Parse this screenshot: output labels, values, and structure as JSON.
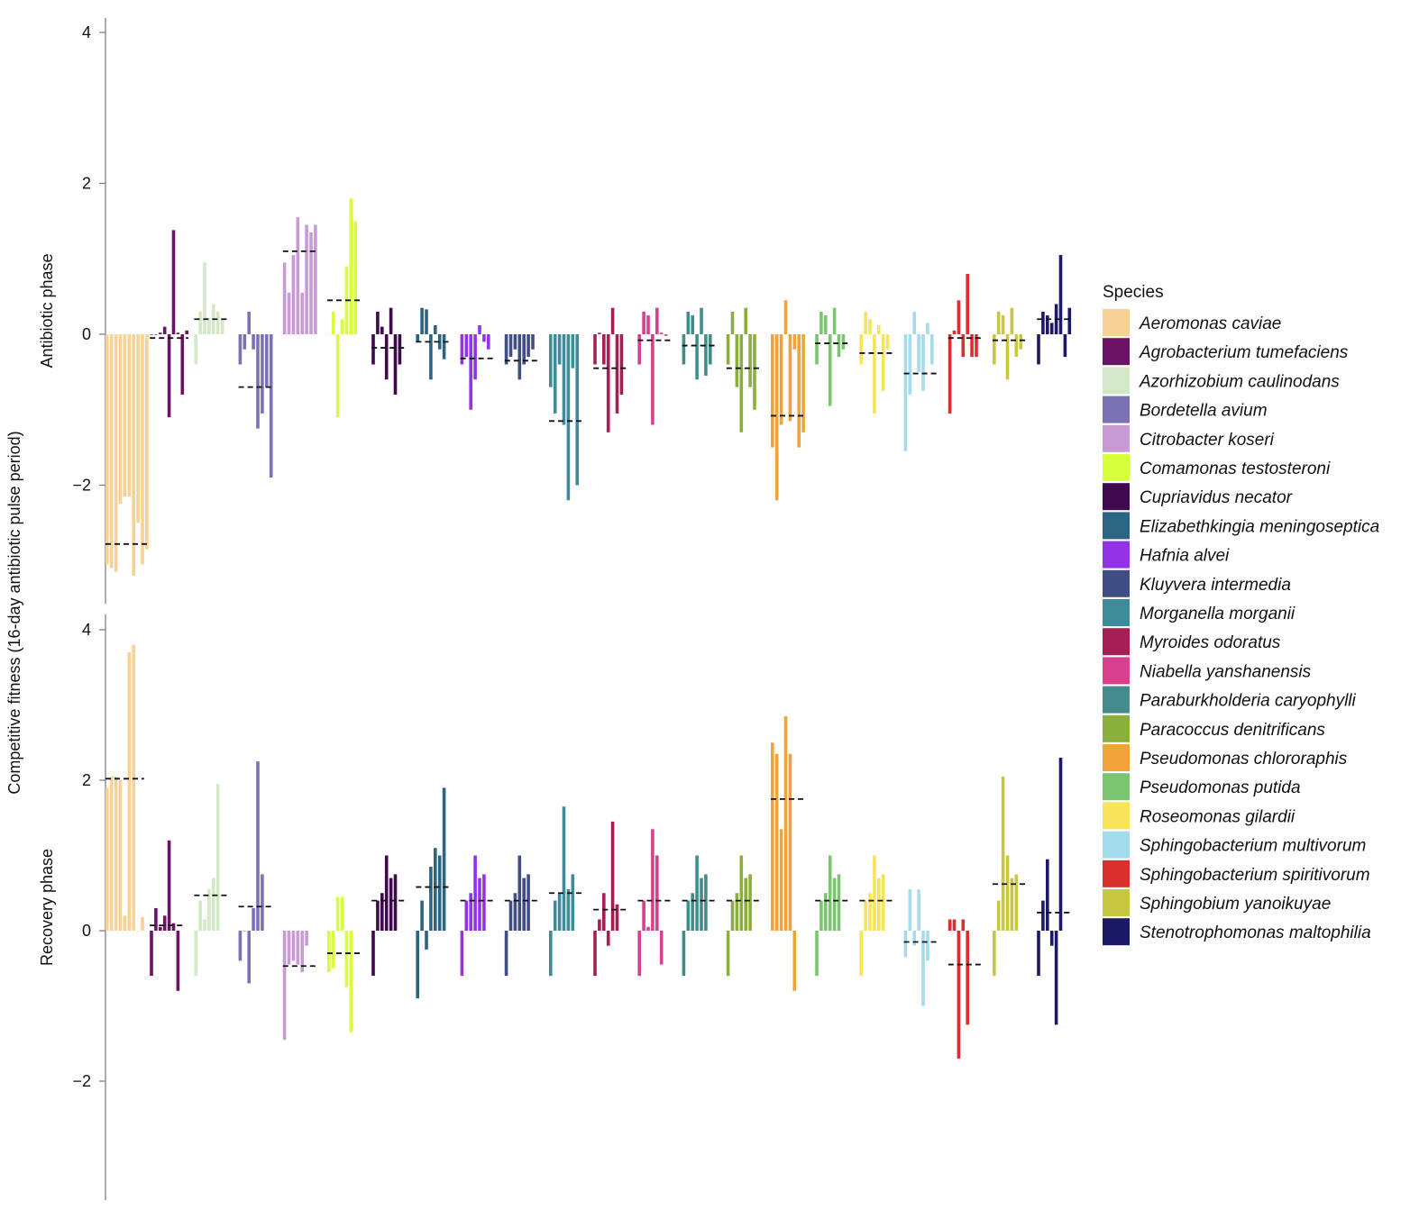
{
  "chart_data": {
    "type": "bar",
    "ylabel": "Competitive fitness (16-day antibiotic pulse period)",
    "legend_title": "Species",
    "legend_position": "right",
    "grid": false,
    "species": [
      {
        "name": "Aeromonas caviae",
        "color": "#F8D196"
      },
      {
        "name": "Agrobacterium tumefaciens",
        "color": "#6B1466"
      },
      {
        "name": "Azorhizobium caulinodans",
        "color": "#D3E8C7"
      },
      {
        "name": "Bordetella avium",
        "color": "#7A72B3"
      },
      {
        "name": "Citrobacter koseri",
        "color": "#C99BD5"
      },
      {
        "name": "Comamonas testosteroni",
        "color": "#D7FF3C"
      },
      {
        "name": "Cupriavidus necator",
        "color": "#3E0A4D"
      },
      {
        "name": "Elizabethkingia meningoseptica",
        "color": "#2B6582"
      },
      {
        "name": "Hafnia alvei",
        "color": "#9333E6"
      },
      {
        "name": "Kluyvera intermedia",
        "color": "#414E86"
      },
      {
        "name": "Morganella morganii",
        "color": "#3E8B99"
      },
      {
        "name": "Myroides odoratus",
        "color": "#A51F55"
      },
      {
        "name": "Niabella yanshanensis",
        "color": "#D83F8E"
      },
      {
        "name": "Paraburkholderia caryophylli",
        "color": "#448C8C"
      },
      {
        "name": "Paracoccus denitrificans",
        "color": "#8AAF3C"
      },
      {
        "name": "Pseudomonas chlororaphis",
        "color": "#EFA33A"
      },
      {
        "name": "Pseudomonas putida",
        "color": "#7BC470"
      },
      {
        "name": "Roseomonas gilardii",
        "color": "#F7E45A"
      },
      {
        "name": "Sphingobacterium multivorum",
        "color": "#A5DCEB"
      },
      {
        "name": "Sphingobacterium spiritivorum",
        "color": "#DA2F2F"
      },
      {
        "name": "Sphingobium yanoikuyae",
        "color": "#C8C840"
      },
      {
        "name": "Stenotrophomonas maltophilia",
        "color": "#1C1A66"
      }
    ],
    "panels": [
      {
        "name": "Antibiotic phase",
        "ylim": [
          -3.55,
          4.2
        ],
        "yticks": [
          -2,
          0,
          2,
          4
        ],
        "ytick_labels": [
          "−2",
          "0",
          "2",
          "4"
        ],
        "means": [
          -2.78,
          -0.05,
          0.2,
          -0.7,
          1.1,
          0.45,
          -0.18,
          -0.1,
          -0.32,
          -0.35,
          -1.15,
          -0.45,
          -0.08,
          -0.15,
          -0.45,
          -1.08,
          -0.12,
          -0.25,
          -0.52,
          -0.05,
          -0.08,
          0.2
        ],
        "values": [
          [
            -3.05,
            -3.1,
            -3.15,
            -2.25,
            -2.15,
            -2.15,
            -3.2,
            -2.5,
            -3.05,
            -2.85
          ],
          [
            0.0,
            0.0,
            0.02,
            0.1,
            -1.1,
            1.38,
            0.02,
            -0.8,
            0.05
          ],
          [
            -0.4,
            0.3,
            0.95,
            0.2,
            0.4,
            0.3,
            0.2
          ],
          [
            -0.4,
            -0.2,
            0.3,
            -0.2,
            -1.25,
            -1.05,
            -0.7,
            -1.9
          ],
          [
            0.95,
            0.55,
            1.05,
            1.55,
            0.55,
            1.45,
            1.35,
            1.45
          ],
          [
            0.0,
            0.3,
            -1.1,
            0.2,
            0.9,
            1.8,
            1.5
          ],
          [
            -0.4,
            0.3,
            0.1,
            -0.6,
            0.35,
            -0.8,
            -0.4
          ],
          [
            -0.1,
            0.35,
            0.33,
            -0.6,
            0.12,
            -0.2,
            -0.33
          ],
          [
            -0.4,
            -0.3,
            -1.0,
            -0.6,
            0.12,
            -0.1,
            -0.2
          ],
          [
            -0.4,
            -0.3,
            -0.2,
            -0.6,
            -0.4,
            -0.3,
            -0.2
          ],
          [
            -0.7,
            -1.05,
            -0.4,
            -1.2,
            -2.2,
            -0.45,
            -2.0
          ],
          [
            -0.4,
            0.02,
            -0.4,
            -1.3,
            0.35,
            -1.05,
            -0.8
          ],
          [
            -0.4,
            0.3,
            0.25,
            -1.2,
            0.35,
            0.02,
            -0.02
          ],
          [
            -0.4,
            0.3,
            0.25,
            -0.6,
            0.35,
            -0.55,
            -0.4
          ],
          [
            -0.4,
            0.3,
            -0.7,
            -1.3,
            0.35,
            -0.7,
            -1.0
          ],
          [
            -1.5,
            -2.2,
            -1.2,
            0.45,
            -1.15,
            -0.2,
            -1.5,
            -1.3
          ],
          [
            -0.4,
            0.3,
            0.25,
            -0.95,
            0.35,
            -0.3,
            -0.2
          ],
          [
            -0.4,
            0.3,
            0.2,
            -1.05,
            0.12,
            -0.75,
            -0.2
          ],
          [
            -1.55,
            -0.8,
            0.3,
            -0.5,
            -0.75,
            0.15,
            -0.4
          ],
          [
            -1.05,
            0.05,
            0.45,
            -0.3,
            0.8,
            -0.3,
            -0.3
          ],
          [
            -0.4,
            0.3,
            0.25,
            -0.6,
            0.35,
            -0.3,
            -0.2
          ],
          [
            -0.4,
            0.3,
            0.25,
            0.15,
            0.4,
            1.05,
            -0.3,
            0.35
          ]
        ]
      },
      {
        "name": "Recovery phase",
        "ylim": [
          -3.55,
          4.2
        ],
        "yticks": [
          -2,
          0,
          2,
          4
        ],
        "ytick_labels": [
          "−2",
          "0",
          "2",
          "4"
        ],
        "means": [
          2.02,
          0.07,
          0.47,
          0.32,
          -0.47,
          -0.3,
          0.4,
          0.58,
          0.4,
          0.4,
          0.5,
          0.28,
          0.4,
          0.4,
          0.4,
          1.75,
          0.4,
          0.4,
          -0.15,
          -0.45,
          0.62,
          0.24
        ],
        "values": [
          [
            1.9,
            2.05,
            2.05,
            2.0,
            0.2,
            3.7,
            3.8,
            0.0,
            0.18
          ],
          [
            -0.6,
            0.3,
            0.05,
            0.2,
            1.2,
            0.1,
            -0.8
          ],
          [
            -0.6,
            0.4,
            0.15,
            0.55,
            0.7,
            1.95
          ],
          [
            -0.4,
            0.0,
            -0.7,
            0.3,
            2.25,
            0.75
          ],
          [
            -1.45,
            -0.45,
            -0.4,
            -0.45,
            -0.55,
            -0.2
          ],
          [
            -0.55,
            -0.5,
            0.45,
            0.45,
            -0.75,
            -1.35
          ],
          [
            -0.6,
            0.4,
            0.5,
            1.0,
            0.7,
            0.75
          ],
          [
            -0.9,
            0.4,
            -0.25,
            0.85,
            1.1,
            1.0,
            1.9
          ],
          [
            -0.6,
            0.4,
            0.5,
            1.0,
            0.7,
            0.75
          ],
          [
            -0.6,
            0.4,
            0.5,
            1.0,
            0.7,
            0.75
          ],
          [
            -0.6,
            0.4,
            0.5,
            1.65,
            0.55,
            0.75
          ],
          [
            -0.6,
            0.15,
            0.5,
            -0.2,
            1.45,
            0.35
          ],
          [
            -0.6,
            0.4,
            0.05,
            1.35,
            1.0,
            -0.45
          ],
          [
            -0.6,
            0.4,
            0.5,
            1.0,
            0.7,
            0.75
          ],
          [
            -0.6,
            0.4,
            0.5,
            1.0,
            0.7,
            0.75
          ],
          [
            2.5,
            2.35,
            1.35,
            2.85,
            2.35,
            -0.8
          ],
          [
            -0.6,
            0.4,
            0.5,
            1.0,
            0.7,
            0.75
          ],
          [
            -0.6,
            0.4,
            0.5,
            1.0,
            0.7,
            0.75
          ],
          [
            -0.35,
            0.55,
            -0.2,
            0.55,
            -1.0,
            -0.4
          ],
          [
            0.15,
            0.15,
            -1.7,
            0.15,
            -1.25
          ],
          [
            -0.6,
            0.4,
            2.05,
            1.0,
            0.7,
            0.75
          ],
          [
            -0.6,
            0.4,
            0.95,
            -0.2,
            -1.25,
            2.3
          ]
        ]
      }
    ]
  }
}
